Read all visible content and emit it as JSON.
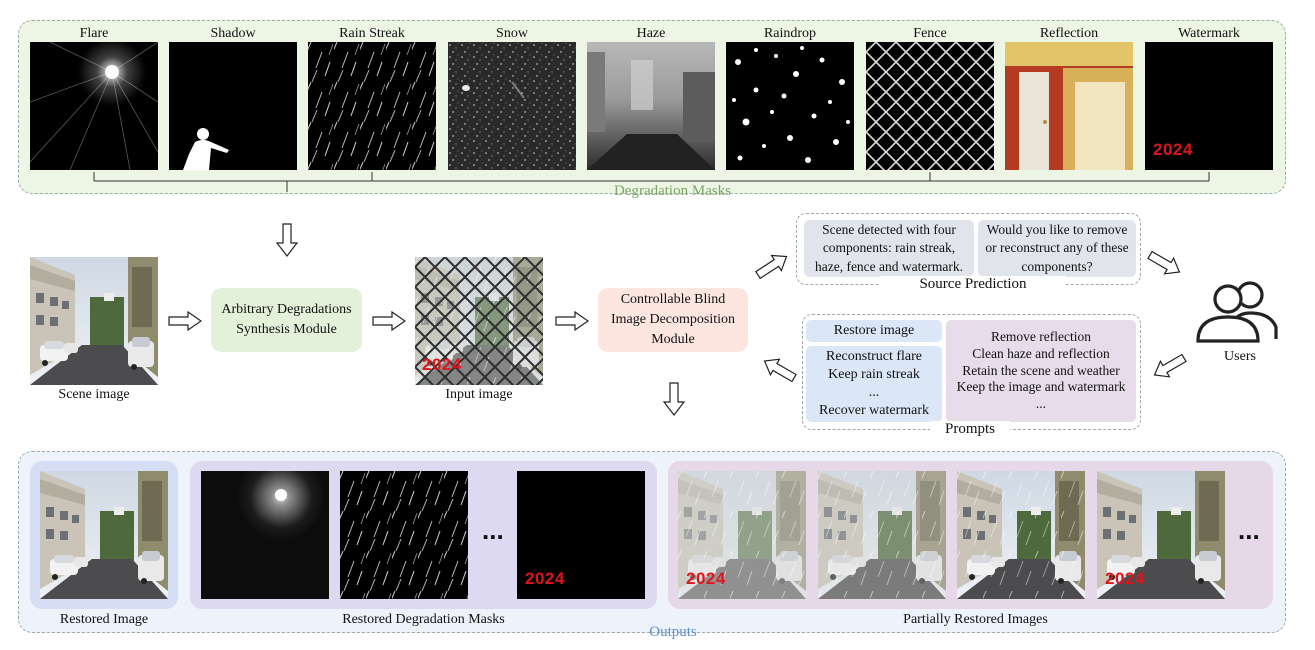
{
  "masks": {
    "group_label": "Degradation Masks",
    "items": [
      {
        "id": "flare",
        "label": "Flare"
      },
      {
        "id": "shadow",
        "label": "Shadow"
      },
      {
        "id": "rain",
        "label": "Rain Streak"
      },
      {
        "id": "snow",
        "label": "Snow"
      },
      {
        "id": "haze",
        "label": "Haze"
      },
      {
        "id": "raindrop",
        "label": "Raindrop"
      },
      {
        "id": "fence",
        "label": "Fence"
      },
      {
        "id": "reflection",
        "label": "Reflection"
      },
      {
        "id": "watermark",
        "label": "Watermark"
      }
    ]
  },
  "watermark_text": "2024",
  "scene_label": "Scene image",
  "synthesis_module": {
    "line1": "Arbitrary Degradations",
    "line2": "Synthesis Module"
  },
  "input_label": "Input image",
  "decomposition_module": {
    "line1": "Controllable Blind",
    "line2": "Image Decomposition",
    "line3": "Module"
  },
  "source_prediction": {
    "label": "Source Prediction",
    "detected": {
      "line1": "Scene detected with four",
      "line2": "components: rain streak,",
      "line3": "haze, fence and watermark."
    },
    "question": {
      "line1": "Would you like to remove",
      "line2": "or reconstruct any of these",
      "line3": "components?"
    }
  },
  "users_label": "Users",
  "prompts": {
    "label": "Prompts",
    "restore": "Restore image",
    "left": [
      "Reconstruct flare",
      "Keep rain streak",
      "...",
      "Recover watermark"
    ],
    "right": [
      "Remove reflection",
      "Clean haze and reflection",
      "Retain the scene and weather",
      "Keep the image and watermark",
      "..."
    ]
  },
  "outputs": {
    "label": "Outputs",
    "restored_image": "Restored Image",
    "restored_masks": "Restored Degradation Masks",
    "partial_images": "Partially Restored Images",
    "ellipsis": "..."
  },
  "colors": {
    "mask_panel": "#edf5e4",
    "synthesis_box": "#e3f0da",
    "decomposition_box": "#fde6e0",
    "source_box": "#e1e4ea",
    "restore_box": "#dbe7f7",
    "prompt_right_box": "#e6dcea",
    "outputs_panel": "#eef2fb",
    "restored_image_panel": "#d6def6",
    "masks_panel": "#dcd9f0",
    "partial_panel": "#e6d8e8",
    "masks_label": "#7fa56a",
    "outputs_label": "#5b8ed0"
  }
}
